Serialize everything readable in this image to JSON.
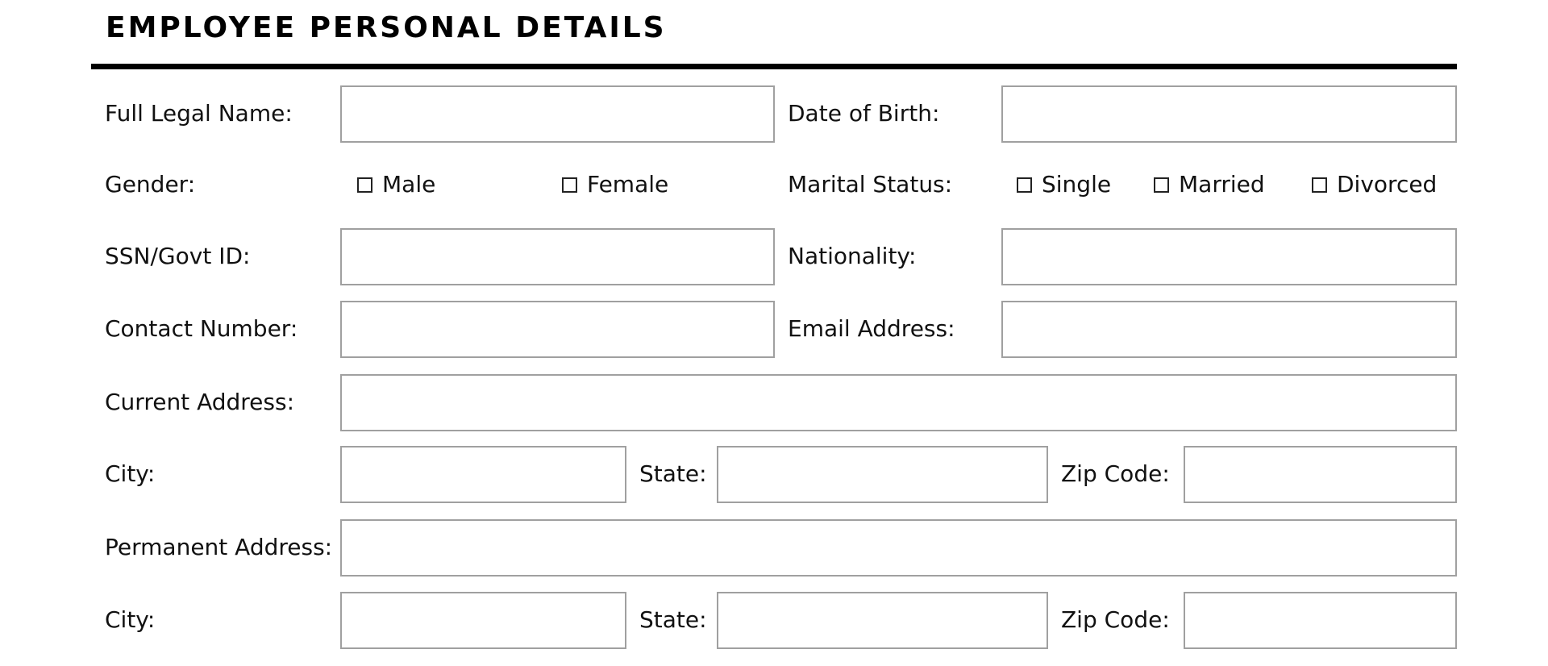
{
  "title": "EMPLOYEE PERSONAL DETAILS",
  "labels": {
    "full_name": "Full Legal Name:",
    "dob": "Date of Birth:",
    "gender": "Gender:",
    "marital": "Marital Status:",
    "ssn": "SSN/Govt ID:",
    "nationality": "Nationality:",
    "contact": "Contact Number:",
    "email": "Email Address:",
    "current_address": "Current Address:",
    "city": "City:",
    "state": "State:",
    "zip": "Zip Code:",
    "permanent_address": "Permanent Address:"
  },
  "gender_options": [
    "Male",
    "Female"
  ],
  "marital_options": [
    "Single",
    "Married",
    "Divorced"
  ]
}
